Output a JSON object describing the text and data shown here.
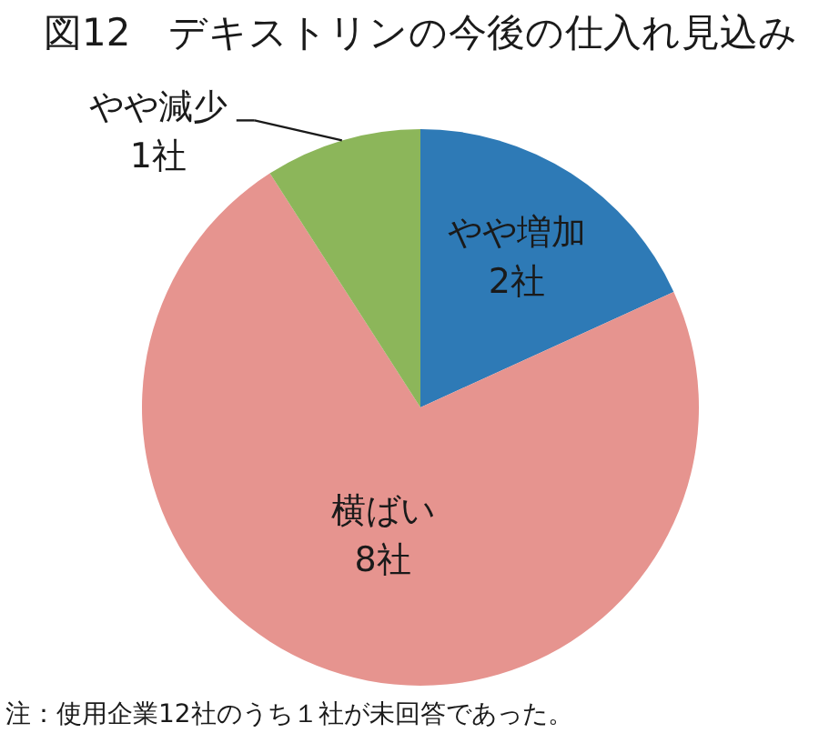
{
  "chart_data": {
    "type": "pie",
    "title": "図12　デキストリンの今後の仕入れ見込み",
    "categories": [
      "やや増加",
      "横ばい",
      "やや減少"
    ],
    "values": [
      2,
      8,
      1
    ],
    "colors": [
      "#2e7ab6",
      "#e6948f",
      "#8cb65a"
    ],
    "value_labels": [
      "2社",
      "8社",
      "1社"
    ],
    "annotations": [
      "注：使用企業12社のうち１社が未回答であった。"
    ]
  }
}
